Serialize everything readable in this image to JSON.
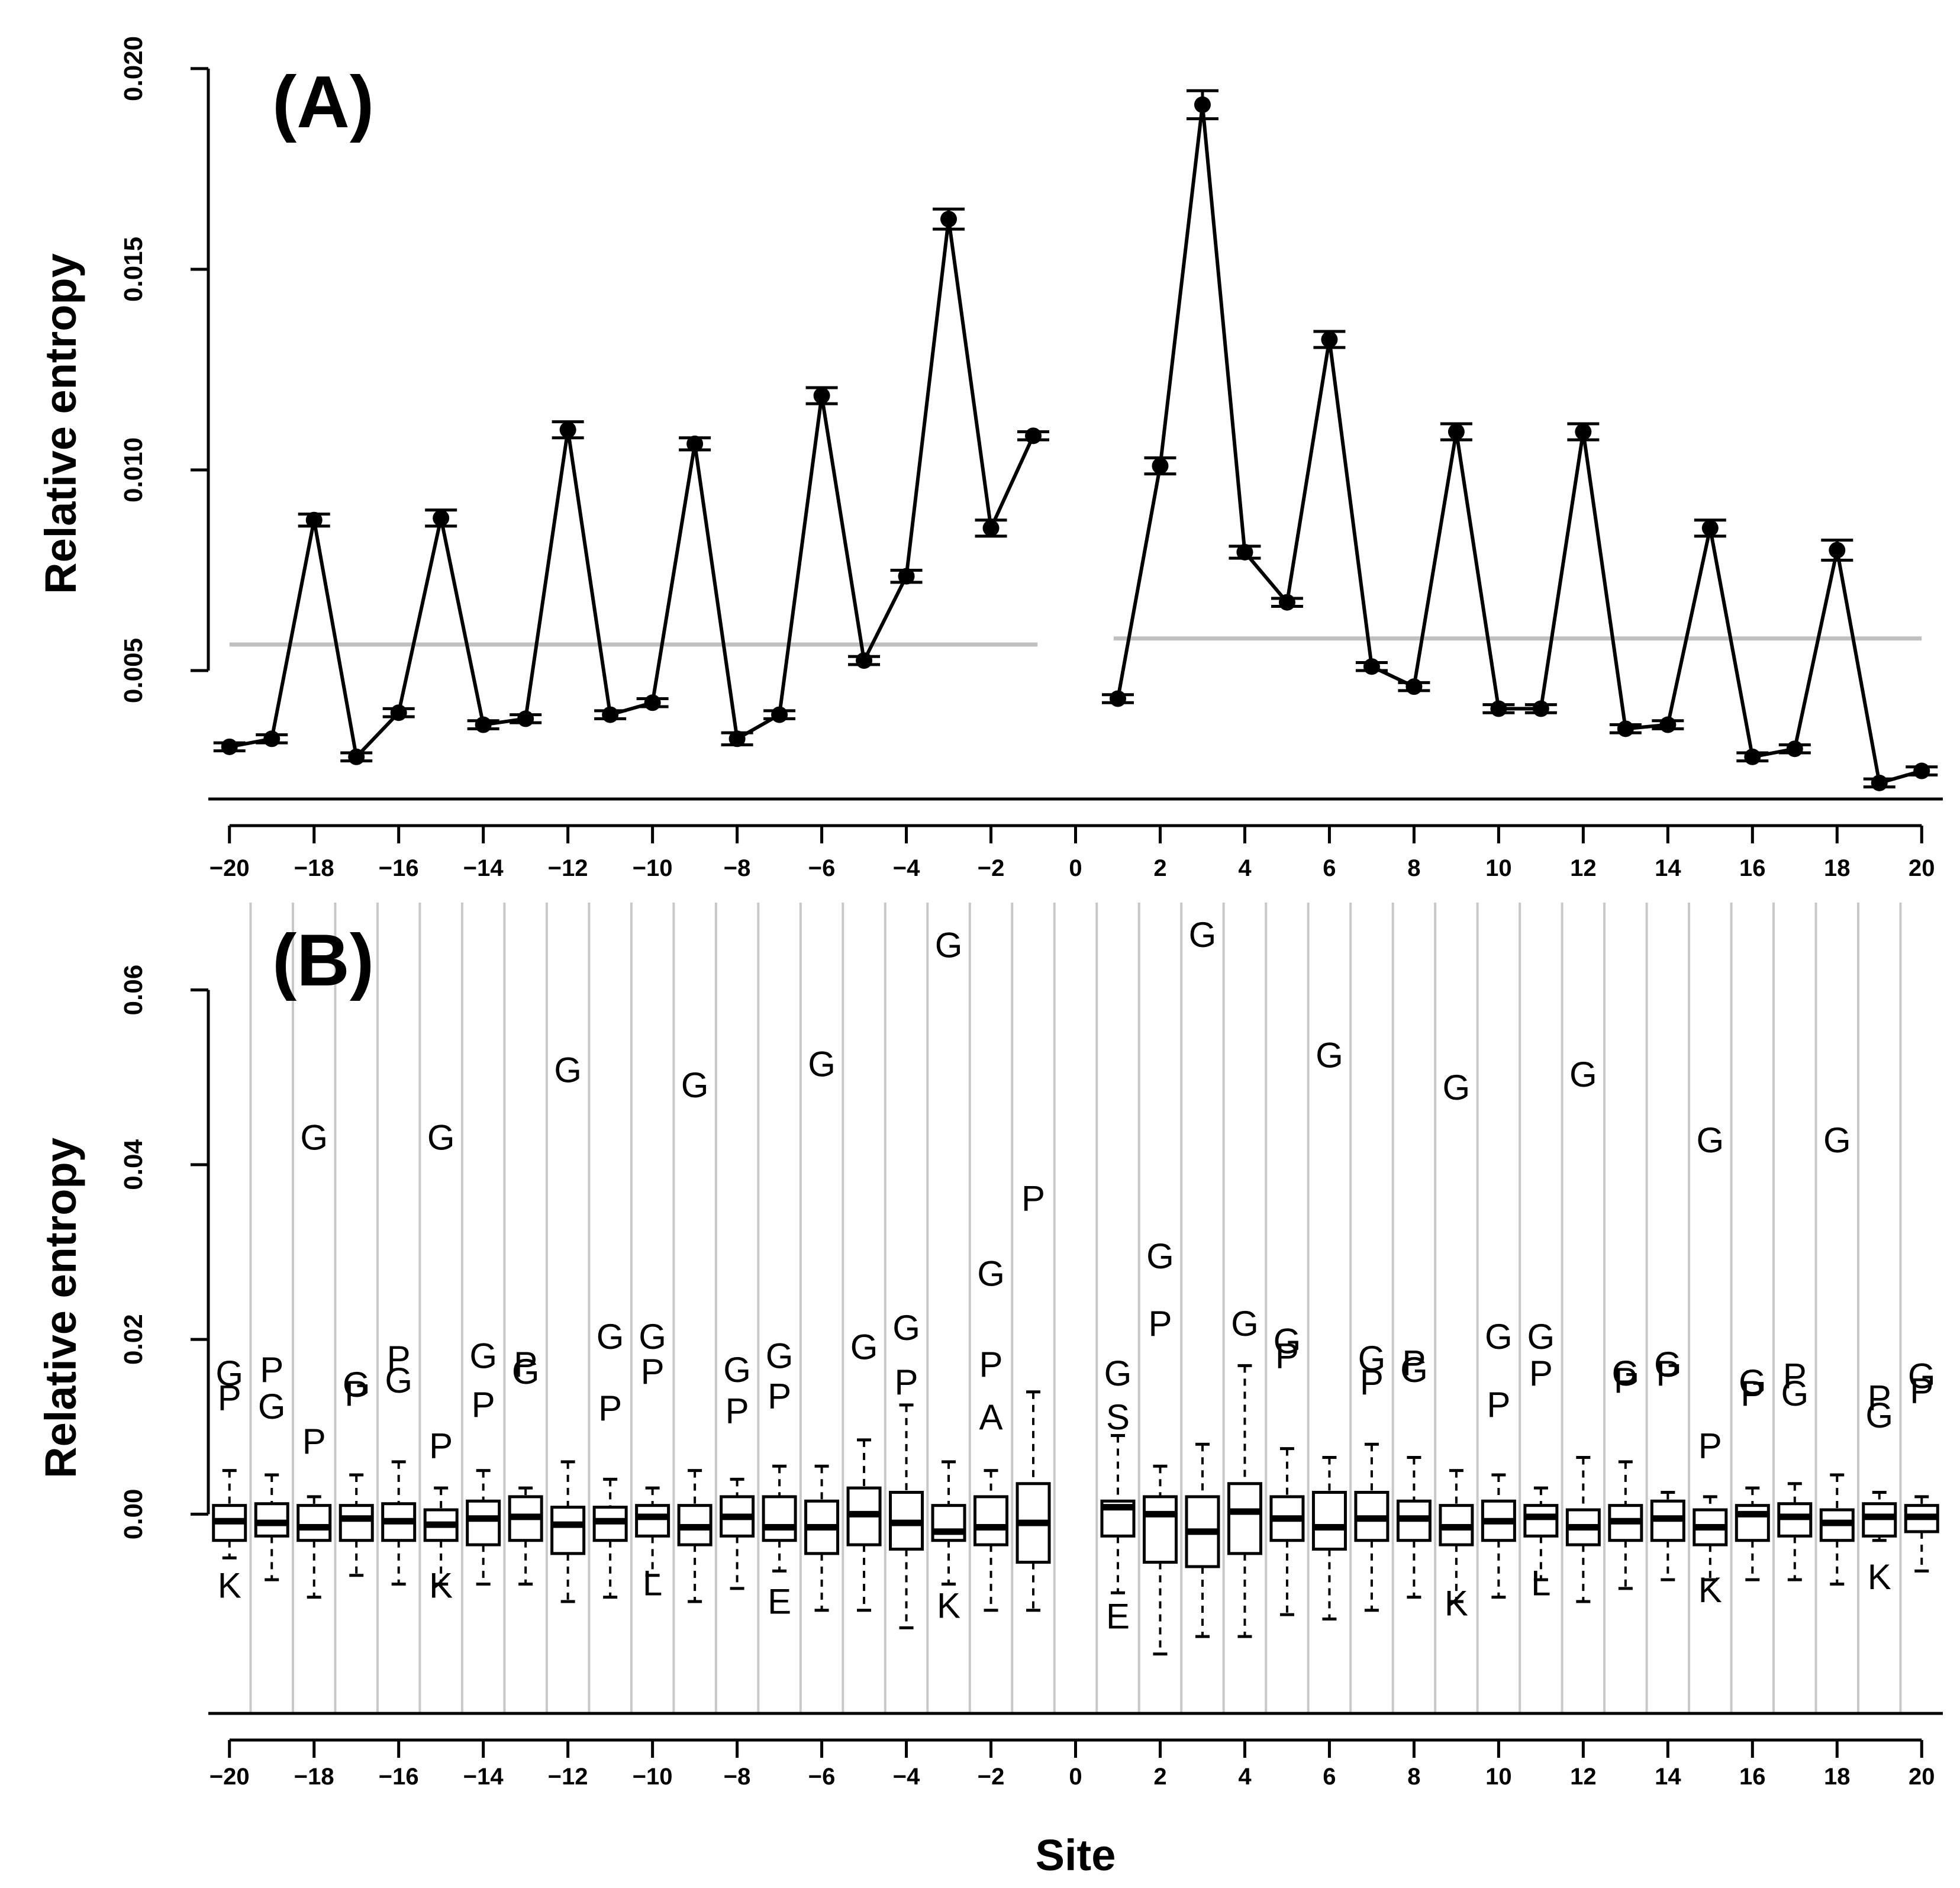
{
  "figure": {
    "xlabel": "Site",
    "colors": {
      "ink": "#000000",
      "baseline": "#c0c0c0",
      "grid": "#c8c8c8",
      "background": "#ffffff"
    }
  },
  "chart_data": [
    {
      "type": "line",
      "panel_label": "(A)",
      "xlabel": "",
      "ylabel": "Relative entropy",
      "xlim": [
        -20.5,
        20.5
      ],
      "ylim": [
        0.0018,
        0.0205
      ],
      "x_ticks": [
        -20,
        -18,
        -16,
        -14,
        -12,
        -10,
        -8,
        -6,
        -4,
        -2,
        0,
        2,
        4,
        6,
        8,
        10,
        12,
        14,
        16,
        18,
        20
      ],
      "y_ticks": [
        0.005,
        0.01,
        0.015,
        0.02
      ],
      "y_tick_labels": [
        "0.005",
        "0.010",
        "0.015",
        "0.020"
      ],
      "grid": false,
      "series": [
        {
          "x": [
            -20,
            -19,
            -18,
            -17,
            -16,
            -15,
            -14,
            -13,
            -12,
            -11,
            -10,
            -9,
            -8,
            -7,
            -6,
            -5,
            -4,
            -3,
            -2,
            -1
          ],
          "values": [
            0.0031,
            0.0033,
            0.00875,
            0.00285,
            0.00395,
            0.0088,
            0.00365,
            0.0038,
            0.011,
            0.0039,
            0.0042,
            0.01065,
            0.0033,
            0.0039,
            0.01185,
            0.00525,
            0.00735,
            0.01625,
            0.00855,
            0.01085
          ],
          "error": [
            0.0001,
            0.0001,
            0.00015,
            0.0001,
            0.0001,
            0.0002,
            0.0001,
            0.0001,
            0.0002,
            0.0001,
            0.0001,
            0.00015,
            0.00015,
            0.0001,
            0.0002,
            0.0001,
            0.00015,
            0.00025,
            0.0002,
            0.0001
          ]
        },
        {
          "x": [
            1,
            2,
            3,
            4,
            5,
            6,
            7,
            8,
            9,
            10,
            11,
            12,
            13,
            14,
            15,
            16,
            17,
            18,
            19,
            20
          ],
          "values": [
            0.0043,
            0.0101,
            0.0191,
            0.00795,
            0.0067,
            0.01325,
            0.0051,
            0.0046,
            0.01095,
            0.00405,
            0.00405,
            0.01095,
            0.00355,
            0.00365,
            0.00855,
            0.00285,
            0.00305,
            0.008,
            0.0022,
            0.0025
          ],
          "error": [
            0.0001,
            0.0002,
            0.00035,
            0.00015,
            0.0001,
            0.0002,
            0.0001,
            0.0001,
            0.0002,
            0.0001,
            0.0001,
            0.0002,
            0.0001,
            0.0001,
            0.0002,
            0.0001,
            0.0001,
            0.00025,
            0.0001,
            0.0001
          ]
        }
      ],
      "reference_lines": [
        {
          "x_from": -20.0,
          "x_to": -0.9,
          "y": 0.00565
        },
        {
          "x_from": 0.9,
          "x_to": 20.0,
          "y": 0.0058
        }
      ]
    },
    {
      "type": "box",
      "panel_label": "(B)",
      "xlabel": "Site",
      "ylabel": "Relative entropy",
      "xlim": [
        -20.5,
        20.5
      ],
      "ylim": [
        -0.0228,
        0.07
      ],
      "x_ticks": [
        -20,
        -18,
        -16,
        -14,
        -12,
        -10,
        -8,
        -6,
        -4,
        -2,
        0,
        2,
        4,
        6,
        8,
        10,
        12,
        14,
        16,
        18,
        20
      ],
      "y_ticks": [
        0.0,
        0.02,
        0.04,
        0.06
      ],
      "y_tick_labels": [
        "0.00",
        "0.02",
        "0.04",
        "0.06"
      ],
      "grid": "vertical separators",
      "separators": [
        -19.5,
        -18.5,
        -17.5,
        -16.5,
        -15.5,
        -14.5,
        -13.5,
        -12.5,
        -11.5,
        -10.5,
        -9.5,
        -8.5,
        -7.5,
        -6.5,
        -5.5,
        -4.5,
        -3.5,
        -2.5,
        -1.5,
        -0.5,
        0.5,
        1.5,
        2.5,
        3.5,
        4.5,
        5.5,
        6.5,
        7.5,
        8.5,
        9.5,
        10.5,
        11.5,
        12.5,
        13.5,
        14.5,
        15.5,
        16.5,
        17.5,
        18.5,
        19.5
      ],
      "boxes": [
        {
          "x": -20,
          "q1": -0.003,
          "median": -0.0008,
          "q3": 0.001,
          "whisker_low": -0.005,
          "whisker_high": 0.005
        },
        {
          "x": -19,
          "q1": -0.0025,
          "median": -0.001,
          "q3": 0.0012,
          "whisker_low": -0.0075,
          "whisker_high": 0.0045
        },
        {
          "x": -18,
          "q1": -0.003,
          "median": -0.0015,
          "q3": 0.001,
          "whisker_low": -0.0095,
          "whisker_high": 0.002
        },
        {
          "x": -17,
          "q1": -0.003,
          "median": -0.0005,
          "q3": 0.001,
          "whisker_low": -0.007,
          "whisker_high": 0.0045
        },
        {
          "x": -16,
          "q1": -0.003,
          "median": -0.0008,
          "q3": 0.0012,
          "whisker_low": -0.008,
          "whisker_high": 0.006
        },
        {
          "x": -15,
          "q1": -0.003,
          "median": -0.0012,
          "q3": 0.0005,
          "whisker_low": -0.008,
          "whisker_high": 0.003
        },
        {
          "x": -14,
          "q1": -0.0035,
          "median": -0.0005,
          "q3": 0.0015,
          "whisker_low": -0.008,
          "whisker_high": 0.005
        },
        {
          "x": -13,
          "q1": -0.003,
          "median": -0.0003,
          "q3": 0.002,
          "whisker_low": -0.008,
          "whisker_high": 0.003
        },
        {
          "x": -12,
          "q1": -0.0045,
          "median": -0.0012,
          "q3": 0.0008,
          "whisker_low": -0.01,
          "whisker_high": 0.006
        },
        {
          "x": -11,
          "q1": -0.003,
          "median": -0.0008,
          "q3": 0.0008,
          "whisker_low": -0.0095,
          "whisker_high": 0.004
        },
        {
          "x": -10,
          "q1": -0.0025,
          "median": -0.0003,
          "q3": 0.001,
          "whisker_low": -0.007,
          "whisker_high": 0.003
        },
        {
          "x": -9,
          "q1": -0.0035,
          "median": -0.0015,
          "q3": 0.001,
          "whisker_low": -0.01,
          "whisker_high": 0.005
        },
        {
          "x": -8,
          "q1": -0.0025,
          "median": -0.0003,
          "q3": 0.002,
          "whisker_low": -0.0085,
          "whisker_high": 0.004
        },
        {
          "x": -7,
          "q1": -0.003,
          "median": -0.0015,
          "q3": 0.002,
          "whisker_low": -0.0065,
          "whisker_high": 0.0055
        },
        {
          "x": -6,
          "q1": -0.0045,
          "median": -0.0015,
          "q3": 0.0015,
          "whisker_low": -0.011,
          "whisker_high": 0.0055
        },
        {
          "x": -5,
          "q1": -0.0035,
          "median": 0.0,
          "q3": 0.003,
          "whisker_low": -0.011,
          "whisker_high": 0.0085
        },
        {
          "x": -4,
          "q1": -0.004,
          "median": -0.001,
          "q3": 0.0025,
          "whisker_low": -0.013,
          "whisker_high": 0.0125
        },
        {
          "x": -3,
          "q1": -0.003,
          "median": -0.002,
          "q3": 0.001,
          "whisker_low": -0.008,
          "whisker_high": 0.006
        },
        {
          "x": -2,
          "q1": -0.0035,
          "median": -0.0015,
          "q3": 0.002,
          "whisker_low": -0.011,
          "whisker_high": 0.005
        },
        {
          "x": -1,
          "q1": -0.0055,
          "median": -0.001,
          "q3": 0.0035,
          "whisker_low": -0.011,
          "whisker_high": 0.014
        },
        {
          "x": 1,
          "q1": -0.0025,
          "median": 0.0008,
          "q3": 0.0015,
          "whisker_low": -0.009,
          "whisker_high": 0.009
        },
        {
          "x": 2,
          "q1": -0.0055,
          "median": 0.0,
          "q3": 0.002,
          "whisker_low": -0.016,
          "whisker_high": 0.0055
        },
        {
          "x": 3,
          "q1": -0.006,
          "median": -0.002,
          "q3": 0.002,
          "whisker_low": -0.014,
          "whisker_high": 0.008
        },
        {
          "x": 4,
          "q1": -0.0045,
          "median": 0.0003,
          "q3": 0.0035,
          "whisker_low": -0.014,
          "whisker_high": 0.017
        },
        {
          "x": 5,
          "q1": -0.003,
          "median": -0.0005,
          "q3": 0.002,
          "whisker_low": -0.0115,
          "whisker_high": 0.0075
        },
        {
          "x": 6,
          "q1": -0.004,
          "median": -0.0015,
          "q3": 0.0025,
          "whisker_low": -0.012,
          "whisker_high": 0.0065
        },
        {
          "x": 7,
          "q1": -0.003,
          "median": -0.0005,
          "q3": 0.0025,
          "whisker_low": -0.011,
          "whisker_high": 0.008
        },
        {
          "x": 8,
          "q1": -0.003,
          "median": -0.0005,
          "q3": 0.0015,
          "whisker_low": -0.0095,
          "whisker_high": 0.0065
        },
        {
          "x": 9,
          "q1": -0.0035,
          "median": -0.0015,
          "q3": 0.001,
          "whisker_low": -0.01,
          "whisker_high": 0.005
        },
        {
          "x": 10,
          "q1": -0.003,
          "median": -0.0008,
          "q3": 0.0015,
          "whisker_low": -0.0095,
          "whisker_high": 0.0045
        },
        {
          "x": 11,
          "q1": -0.0025,
          "median": -0.0003,
          "q3": 0.001,
          "whisker_low": -0.0075,
          "whisker_high": 0.003
        },
        {
          "x": 12,
          "q1": -0.0035,
          "median": -0.0015,
          "q3": 0.0005,
          "whisker_low": -0.01,
          "whisker_high": 0.0065
        },
        {
          "x": 13,
          "q1": -0.003,
          "median": -0.0008,
          "q3": 0.001,
          "whisker_low": -0.0085,
          "whisker_high": 0.006
        },
        {
          "x": 14,
          "q1": -0.003,
          "median": -0.0005,
          "q3": 0.0015,
          "whisker_low": -0.0075,
          "whisker_high": 0.0025
        },
        {
          "x": 15,
          "q1": -0.0035,
          "median": -0.0015,
          "q3": 0.0005,
          "whisker_low": -0.0075,
          "whisker_high": 0.002
        },
        {
          "x": 16,
          "q1": -0.003,
          "median": 0.0,
          "q3": 0.001,
          "whisker_low": -0.0075,
          "whisker_high": 0.003
        },
        {
          "x": 17,
          "q1": -0.0025,
          "median": -0.0003,
          "q3": 0.0012,
          "whisker_low": -0.0075,
          "whisker_high": 0.0035
        },
        {
          "x": 18,
          "q1": -0.003,
          "median": -0.001,
          "q3": 0.0005,
          "whisker_low": -0.008,
          "whisker_high": 0.0045
        },
        {
          "x": 19,
          "q1": -0.0025,
          "median": -0.0003,
          "q3": 0.0012,
          "whisker_low": -0.003,
          "whisker_high": 0.0025
        },
        {
          "x": 20,
          "q1": -0.002,
          "median": -0.0003,
          "q3": 0.001,
          "whisker_low": -0.0065,
          "whisker_high": 0.002
        }
      ],
      "outlier_labels": [
        {
          "x": -20,
          "y": 0.0158,
          "label": "G"
        },
        {
          "x": -20,
          "y": 0.013,
          "label": "P"
        },
        {
          "x": -20,
          "y": -0.0085,
          "label": "K"
        },
        {
          "x": -19,
          "y": 0.0162,
          "label": "P"
        },
        {
          "x": -19,
          "y": 0.012,
          "label": "G"
        },
        {
          "x": -18,
          "y": 0.0428,
          "label": "G"
        },
        {
          "x": -18,
          "y": 0.008,
          "label": "P"
        },
        {
          "x": -17,
          "y": 0.0145,
          "label": "G"
        },
        {
          "x": -17,
          "y": 0.0135,
          "label": "P"
        },
        {
          "x": -16,
          "y": 0.0175,
          "label": "P"
        },
        {
          "x": -16,
          "y": 0.015,
          "label": "G"
        },
        {
          "x": -15,
          "y": 0.0428,
          "label": "G"
        },
        {
          "x": -15,
          "y": 0.0075,
          "label": "P"
        },
        {
          "x": -15,
          "y": -0.0085,
          "label": "K"
        },
        {
          "x": -14,
          "y": 0.0178,
          "label": "G"
        },
        {
          "x": -14,
          "y": 0.0122,
          "label": "P"
        },
        {
          "x": -13,
          "y": 0.0168,
          "label": "P"
        },
        {
          "x": -13,
          "y": 0.016,
          "label": "G"
        },
        {
          "x": -12,
          "y": 0.0505,
          "label": "G"
        },
        {
          "x": -11,
          "y": 0.02,
          "label": "G"
        },
        {
          "x": -11,
          "y": 0.0118,
          "label": "P"
        },
        {
          "x": -10,
          "y": 0.02,
          "label": "G"
        },
        {
          "x": -10,
          "y": 0.016,
          "label": "P"
        },
        {
          "x": -10,
          "y": -0.0082,
          "label": "L"
        },
        {
          "x": -9,
          "y": 0.0488,
          "label": "G"
        },
        {
          "x": -8,
          "y": 0.0162,
          "label": "G"
        },
        {
          "x": -8,
          "y": 0.0115,
          "label": "P"
        },
        {
          "x": -7,
          "y": 0.0178,
          "label": "G"
        },
        {
          "x": -7,
          "y": 0.0132,
          "label": "P"
        },
        {
          "x": -7,
          "y": -0.0103,
          "label": "E"
        },
        {
          "x": -6,
          "y": 0.0512,
          "label": "G"
        },
        {
          "x": -5,
          "y": 0.0188,
          "label": "G"
        },
        {
          "x": -4,
          "y": 0.021,
          "label": "G"
        },
        {
          "x": -4,
          "y": 0.0148,
          "label": "P"
        },
        {
          "x": -3,
          "y": 0.0648,
          "label": "G"
        },
        {
          "x": -3,
          "y": -0.0108,
          "label": "K"
        },
        {
          "x": -2,
          "y": 0.0272,
          "label": "G"
        },
        {
          "x": -2,
          "y": 0.0168,
          "label": "P"
        },
        {
          "x": -2,
          "y": 0.0108,
          "label": "A"
        },
        {
          "x": -1,
          "y": 0.0358,
          "label": "P"
        },
        {
          "x": 1,
          "y": 0.0158,
          "label": "G"
        },
        {
          "x": 1,
          "y": 0.0108,
          "label": "S"
        },
        {
          "x": 1,
          "y": -0.012,
          "label": "E"
        },
        {
          "x": 2,
          "y": 0.0292,
          "label": "G"
        },
        {
          "x": 2,
          "y": 0.0215,
          "label": "P"
        },
        {
          "x": 3,
          "y": 0.066,
          "label": "G"
        },
        {
          "x": 4,
          "y": 0.0215,
          "label": "G"
        },
        {
          "x": 5,
          "y": 0.0195,
          "label": "G"
        },
        {
          "x": 5,
          "y": 0.0178,
          "label": "P"
        },
        {
          "x": 6,
          "y": 0.0522,
          "label": "G"
        },
        {
          "x": 7,
          "y": 0.0175,
          "label": "G"
        },
        {
          "x": 7,
          "y": 0.0148,
          "label": "P"
        },
        {
          "x": 8,
          "y": 0.017,
          "label": "P"
        },
        {
          "x": 8,
          "y": 0.0162,
          "label": "G"
        },
        {
          "x": 9,
          "y": 0.0485,
          "label": "G"
        },
        {
          "x": 9,
          "y": -0.0105,
          "label": "K"
        },
        {
          "x": 10,
          "y": 0.02,
          "label": "G"
        },
        {
          "x": 10,
          "y": 0.0122,
          "label": "P"
        },
        {
          "x": 11,
          "y": 0.02,
          "label": "G"
        },
        {
          "x": 11,
          "y": 0.0158,
          "label": "P"
        },
        {
          "x": 11,
          "y": -0.0082,
          "label": "L"
        },
        {
          "x": 12,
          "y": 0.05,
          "label": "G"
        },
        {
          "x": 13,
          "y": 0.0158,
          "label": "G"
        },
        {
          "x": 13,
          "y": 0.015,
          "label": "P"
        },
        {
          "x": 14,
          "y": 0.0168,
          "label": "G"
        },
        {
          "x": 14,
          "y": 0.0158,
          "label": "P"
        },
        {
          "x": 15,
          "y": 0.0425,
          "label": "G"
        },
        {
          "x": 15,
          "y": 0.0075,
          "label": "P"
        },
        {
          "x": 15,
          "y": -0.009,
          "label": "K"
        },
        {
          "x": 16,
          "y": 0.0148,
          "label": "G"
        },
        {
          "x": 16,
          "y": 0.0135,
          "label": "P"
        },
        {
          "x": 17,
          "y": 0.0155,
          "label": "P"
        },
        {
          "x": 17,
          "y": 0.0135,
          "label": "G"
        },
        {
          "x": 18,
          "y": 0.0425,
          "label": "G"
        },
        {
          "x": 19,
          "y": 0.013,
          "label": "P"
        },
        {
          "x": 19,
          "y": 0.011,
          "label": "G"
        },
        {
          "x": 19,
          "y": -0.0075,
          "label": "K"
        },
        {
          "x": 20,
          "y": 0.0155,
          "label": "G"
        },
        {
          "x": 20,
          "y": 0.0138,
          "label": "P"
        }
      ]
    }
  ]
}
